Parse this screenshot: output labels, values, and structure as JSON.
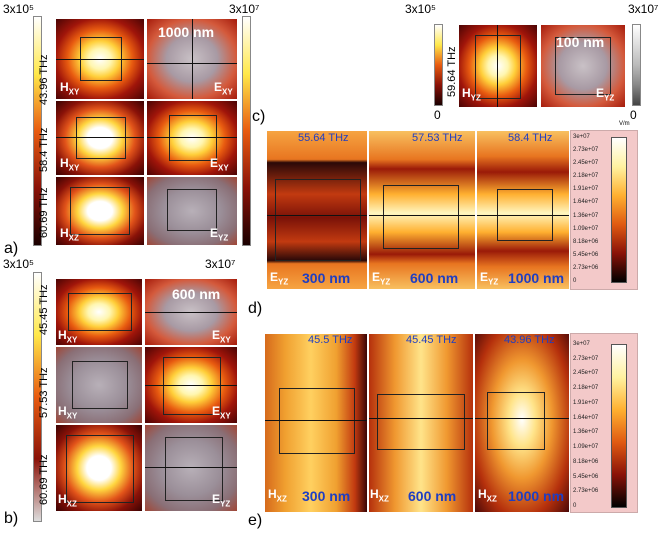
{
  "panel_letters": {
    "a": "a)",
    "b": "b)",
    "c": "c)",
    "d": "d)",
    "e": "e)"
  },
  "colorbars": {
    "a_left_max": "3x10⁵",
    "a_right_max": "3x10⁷",
    "b_left_max": "3x10⁵",
    "b_right_max": "3x10⁷",
    "top_left_max": "3x10⁵",
    "top_left_min": "0",
    "top_right_max": "3x10⁷",
    "top_right_min": "0"
  },
  "freq_labels": {
    "a1": "43.96 THz",
    "a2": "58.4 THz",
    "a3": "60.69 THz",
    "b1": "45.45 THz",
    "b2": "57.53 THz",
    "b3": "60.69 THz",
    "top": "59.64 THz",
    "c1": "55.64 THz",
    "c2": "57.53 THz",
    "c3": "58.4 THz",
    "e1": "45.5 THz",
    "e2": "45.45 THz",
    "e3": "43.96 THz"
  },
  "size_labels": {
    "a": "1000 nm",
    "b": "600 nm",
    "top": "100 nm",
    "c1": "300 nm",
    "c2": "600 nm",
    "c3": "1000 nm",
    "e1": "300 nm",
    "e2": "600 nm",
    "e3": "1000 nm"
  },
  "field_labels": {
    "H": "H",
    "E": "E",
    "xy": "XY",
    "xz": "XZ",
    "yz": "YZ"
  },
  "legend": {
    "unit": "V/m",
    "ticks": [
      "3e+07",
      "2.73e+07",
      "2.45e+07",
      "2.18e+07",
      "1.91e+07",
      "1.64e+07",
      "1.36e+07",
      "1.09e+07",
      "8.18e+06",
      "5.45e+06",
      "2.73e+06",
      "0"
    ]
  }
}
